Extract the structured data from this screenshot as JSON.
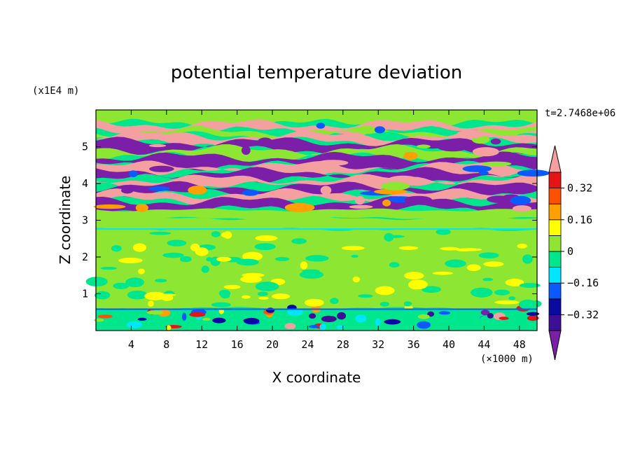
{
  "chart_data": {
    "type": "heatmap",
    "title": "potential temperature deviation",
    "xlabel": "X coordinate",
    "ylabel": "Z coordinate",
    "x_unit": "(×1000 m)",
    "y_unit": "(x1E4 m)",
    "time_label": "t=2.7468e+06",
    "xlim": [
      0,
      50
    ],
    "ylim": [
      0,
      6
    ],
    "x_ticks": [
      4,
      8,
      12,
      16,
      20,
      24,
      28,
      32,
      36,
      40,
      44,
      48
    ],
    "y_ticks": [
      1,
      2,
      3,
      4,
      5
    ],
    "colorbar": {
      "levels": [
        -0.4,
        -0.32,
        -0.24,
        -0.16,
        -0.08,
        0,
        0.08,
        0.16,
        0.24,
        0.32,
        0.4
      ],
      "tick_labels": [
        "0.32",
        "0.16",
        "0",
        "−0.16",
        "−0.32"
      ],
      "tick_values": [
        0.32,
        0.16,
        0,
        -0.16,
        -0.32
      ],
      "colors": [
        "#7b1fa8",
        "#3c0f96",
        "#0a0aa0",
        "#0a5aff",
        "#00e6ff",
        "#00e68c",
        "#8ce632",
        "#ffff00",
        "#ffa000",
        "#ff5000",
        "#e61414",
        "#f5a0a0"
      ]
    },
    "bands": [
      {
        "z": [
          5.62,
          6.0
        ],
        "value": 0.02
      },
      {
        "z": [
          5.42,
          5.62
        ],
        "value": 0.5
      },
      {
        "z": [
          5.3,
          5.42
        ],
        "value": 0.02
      },
      {
        "z": [
          5.13,
          5.3
        ],
        "value": 0.5
      },
      {
        "z": [
          4.92,
          5.13
        ],
        "value": -0.5
      },
      {
        "z": [
          4.72,
          4.92
        ],
        "value": 0.02
      },
      {
        "z": [
          4.48,
          4.72
        ],
        "value": -0.5
      },
      {
        "z": [
          4.3,
          4.48
        ],
        "value": 0.5
      },
      {
        "z": [
          4.12,
          4.3
        ],
        "value": -0.5
      },
      {
        "z": [
          3.92,
          4.12
        ],
        "value": 0.5
      },
      {
        "z": [
          3.72,
          3.92
        ],
        "value": -0.5
      },
      {
        "z": [
          3.52,
          3.72
        ],
        "value": 0.5
      },
      {
        "z": [
          3.28,
          3.52
        ],
        "value": -0.5
      },
      {
        "z": [
          3.05,
          3.28
        ],
        "value": 0.02
      },
      {
        "z": [
          2.75,
          3.05
        ],
        "value": 0.06
      },
      {
        "z": [
          0.6,
          2.75
        ],
        "value": 0.03
      },
      {
        "z": [
          0.0,
          0.6
        ],
        "value": -0.05
      }
    ]
  }
}
